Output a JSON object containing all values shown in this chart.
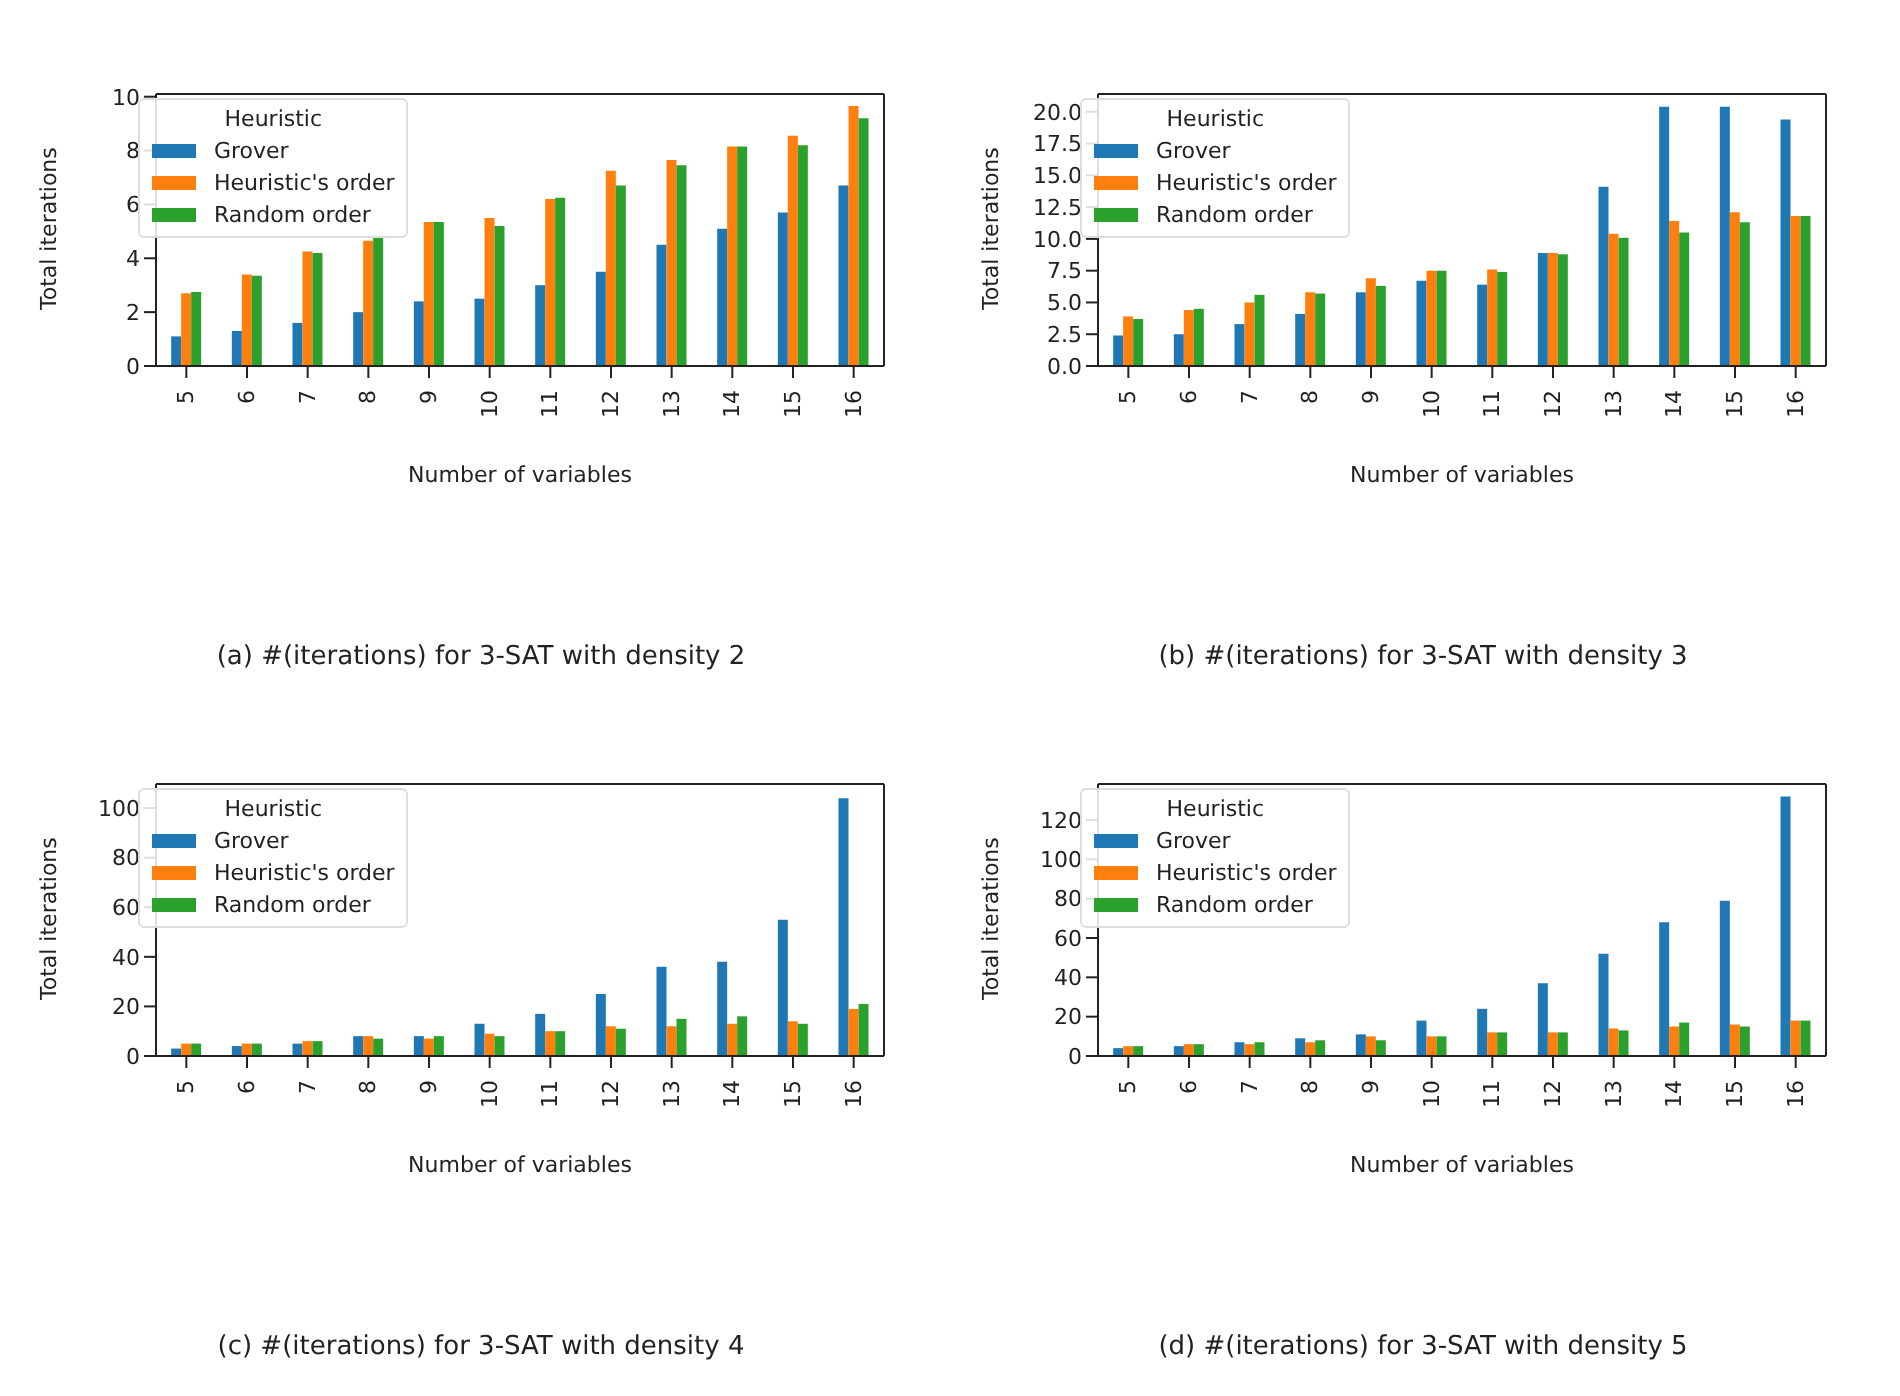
{
  "chart_data": [
    {
      "type": "bar",
      "annotations": [
        "(a) #(iterations) for 3-SAT with density 2"
      ],
      "xlabel": "Number of variables",
      "ylabel": "Total iterations",
      "legend_title": "Heuristic",
      "legend": "top left",
      "grid": false,
      "categories": [
        "5",
        "6",
        "7",
        "8",
        "9",
        "10",
        "11",
        "12",
        "13",
        "14",
        "15",
        "16"
      ],
      "ylim": [
        0,
        10.1
      ],
      "yticks": [
        0,
        2,
        4,
        6,
        8,
        10
      ],
      "series": [
        {
          "name": "Grover",
          "color": "#1f77b4",
          "values": [
            1.1,
            1.3,
            1.6,
            2.0,
            2.4,
            2.5,
            3.0,
            3.5,
            4.5,
            5.1,
            5.7,
            6.7
          ]
        },
        {
          "name": "Heuristic's order",
          "color": "#ff7f0e",
          "values": [
            2.7,
            3.4,
            4.25,
            4.65,
            5.35,
            5.5,
            6.2,
            7.25,
            7.65,
            8.15,
            8.55,
            9.65
          ]
        },
        {
          "name": "Random order",
          "color": "#2ca02c",
          "values": [
            2.75,
            3.35,
            4.2,
            4.8,
            5.35,
            5.2,
            6.25,
            6.7,
            7.45,
            8.15,
            8.2,
            9.2
          ]
        }
      ]
    },
    {
      "type": "bar",
      "annotations": [
        "(b) #(iterations) for 3-SAT with density 3"
      ],
      "xlabel": "Number of variables",
      "ylabel": "Total iterations",
      "legend_title": "Heuristic",
      "legend": "top left",
      "grid": false,
      "categories": [
        "5",
        "6",
        "7",
        "8",
        "9",
        "10",
        "11",
        "12",
        "13",
        "14",
        "15",
        "16"
      ],
      "ylim": [
        0,
        21.4
      ],
      "yticks": [
        {
          "value": 0,
          "label": "0.0"
        },
        2.5,
        {
          "value": 5,
          "label": "5.0"
        },
        7.5,
        {
          "value": 10,
          "label": "10.0"
        },
        12.5,
        {
          "value": 15,
          "label": "15.0"
        },
        17.5,
        {
          "value": 20,
          "label": "20.0"
        }
      ],
      "series": [
        {
          "name": "Grover",
          "color": "#1f77b4",
          "values": [
            2.4,
            2.5,
            3.3,
            4.1,
            5.8,
            6.7,
            6.4,
            8.9,
            14.1,
            20.4,
            20.4,
            19.4
          ]
        },
        {
          "name": "Heuristic's order",
          "color": "#ff7f0e",
          "values": [
            3.9,
            4.4,
            5.0,
            5.8,
            6.9,
            7.5,
            7.6,
            8.9,
            10.4,
            11.4,
            12.1,
            11.8
          ]
        },
        {
          "name": "Random order",
          "color": "#2ca02c",
          "values": [
            3.7,
            4.5,
            5.6,
            5.7,
            6.3,
            7.5,
            7.4,
            8.8,
            10.1,
            10.5,
            11.3,
            11.8
          ]
        }
      ]
    },
    {
      "type": "bar",
      "annotations": [
        "(c) #(iterations) for 3-SAT with density 4"
      ],
      "xlabel": "Number of variables",
      "ylabel": "Total iterations",
      "legend_title": "Heuristic",
      "legend": "top left",
      "grid": false,
      "categories": [
        "5",
        "6",
        "7",
        "8",
        "9",
        "10",
        "11",
        "12",
        "13",
        "14",
        "15",
        "16"
      ],
      "ylim": [
        0,
        109.7
      ],
      "yticks": [
        0,
        20,
        40,
        60,
        80,
        100
      ],
      "series": [
        {
          "name": "Grover",
          "color": "#1f77b4",
          "values": [
            3,
            4,
            5,
            8,
            8,
            13,
            17,
            25,
            36,
            38,
            55,
            104
          ]
        },
        {
          "name": "Heuristic's order",
          "color": "#ff7f0e",
          "values": [
            5,
            5,
            6,
            8,
            7,
            9,
            10,
            12,
            12,
            13,
            14,
            19
          ]
        },
        {
          "name": "Random order",
          "color": "#2ca02c",
          "values": [
            5,
            5,
            6,
            7,
            8,
            8,
            10,
            11,
            15,
            16,
            13,
            21
          ]
        }
      ]
    },
    {
      "type": "bar",
      "annotations": [
        "(d) #(iterations) for 3-SAT with density 5"
      ],
      "xlabel": "Number of variables",
      "ylabel": "Total iterations",
      "legend_title": "Heuristic",
      "legend": "top left",
      "grid": false,
      "categories": [
        "5",
        "6",
        "7",
        "8",
        "9",
        "10",
        "11",
        "12",
        "13",
        "14",
        "15",
        "16"
      ],
      "ylim": [
        0,
        138.3
      ],
      "yticks": [
        0,
        20,
        40,
        60,
        80,
        100,
        120
      ],
      "series": [
        {
          "name": "Grover",
          "color": "#1f77b4",
          "values": [
            4,
            5,
            7,
            9,
            11,
            18,
            24,
            37,
            52,
            68,
            79,
            132
          ]
        },
        {
          "name": "Heuristic's order",
          "color": "#ff7f0e",
          "values": [
            5,
            6,
            6,
            7,
            10,
            10,
            12,
            12,
            14,
            15,
            16,
            18
          ]
        },
        {
          "name": "Random order",
          "color": "#2ca02c",
          "values": [
            5,
            6,
            7,
            8,
            8,
            10,
            12,
            12,
            13,
            17,
            15,
            18
          ]
        }
      ]
    }
  ]
}
